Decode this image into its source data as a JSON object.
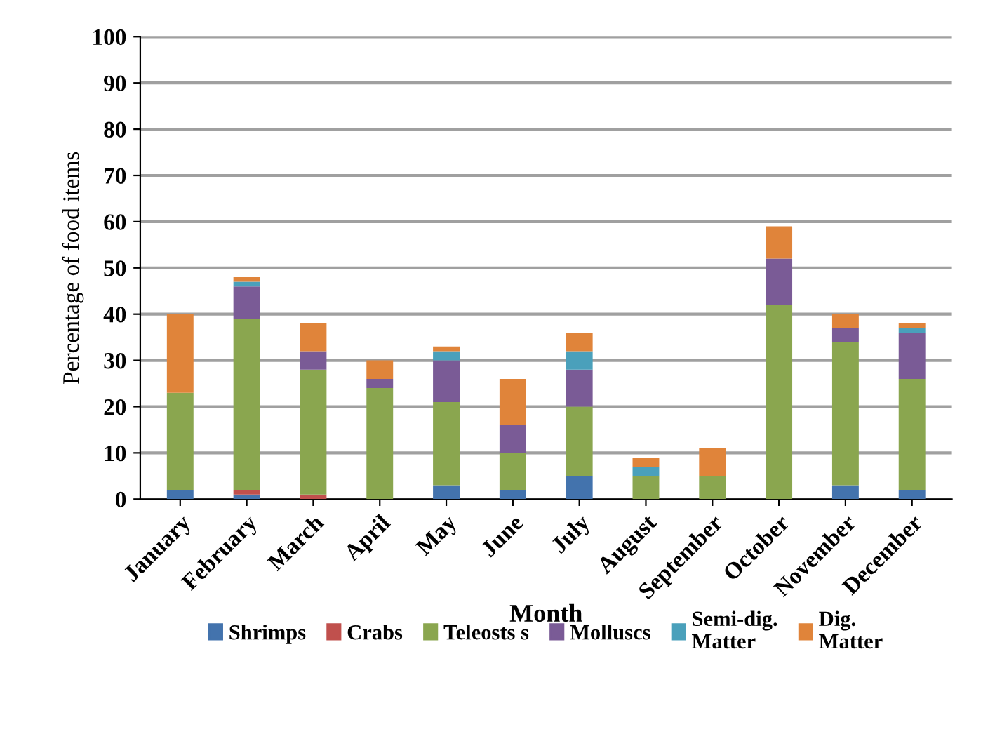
{
  "chart_data": {
    "type": "bar",
    "stacked": true,
    "xlabel": "Month",
    "ylabel": "Percentage of food items",
    "categories": [
      "January",
      "February",
      "March",
      "April",
      "May",
      "June",
      "July",
      "August",
      "September",
      "October",
      "November",
      "December"
    ],
    "series": [
      {
        "name": "Shrimps",
        "color": "#4373ad",
        "values": [
          2,
          1,
          0,
          0,
          3,
          2,
          5,
          0,
          0,
          0,
          3,
          2
        ]
      },
      {
        "name": "Crabs",
        "color": "#c0504d",
        "values": [
          0,
          1,
          1,
          0,
          0,
          0,
          0,
          0,
          0,
          0,
          0,
          0
        ]
      },
      {
        "name": "Teleosts s",
        "color": "#8aa64f",
        "values": [
          21,
          37,
          27,
          24,
          18,
          8,
          15,
          5,
          5,
          42,
          31,
          24
        ]
      },
      {
        "name": "Molluscs",
        "color": "#7a5b96",
        "values": [
          0,
          7,
          4,
          2,
          9,
          6,
          8,
          0,
          0,
          10,
          3,
          10
        ]
      },
      {
        "name": "Semi-dig.\nMatter",
        "color": "#4aa0bb",
        "values": [
          0,
          1,
          0,
          0,
          2,
          0,
          4,
          2,
          0,
          0,
          0,
          1
        ]
      },
      {
        "name": "Dig.\nMatter",
        "color": "#e0843a",
        "values": [
          17,
          1,
          6,
          4,
          1,
          10,
          4,
          2,
          6,
          7,
          3,
          1
        ]
      }
    ],
    "ylim": [
      0,
      100
    ],
    "yticks": [
      0,
      10,
      20,
      30,
      40,
      50,
      60,
      70,
      80,
      90,
      100
    ],
    "grid": "y",
    "legend": "bottom"
  }
}
